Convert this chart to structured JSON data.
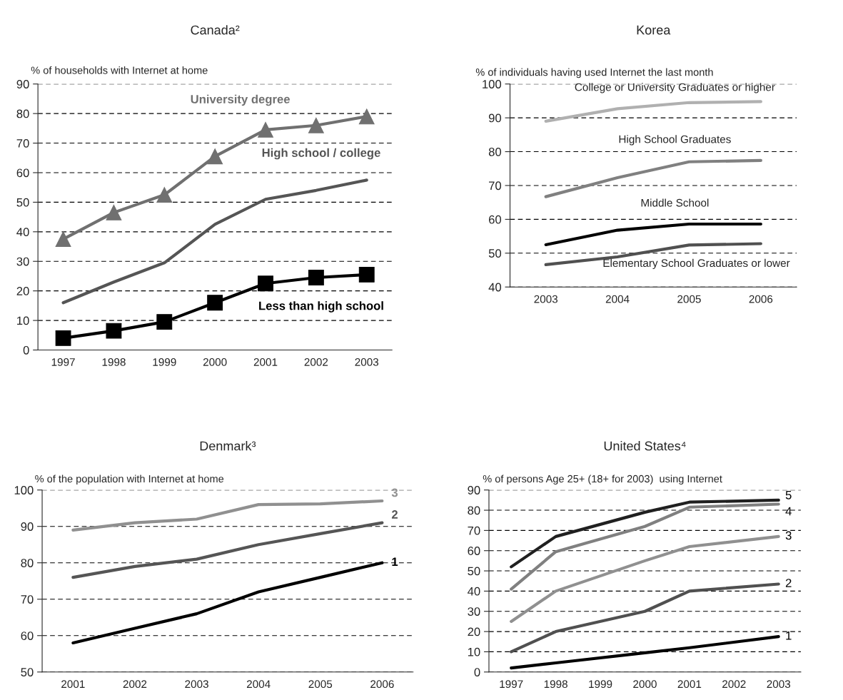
{
  "chart_data": [
    {
      "type": "line",
      "title": "Canada²",
      "ylabel": "% of households with Internet at home",
      "categories": [
        "1997",
        "1998",
        "1999",
        "2000",
        "2001",
        "2002",
        "2003"
      ],
      "ylim": [
        0,
        90
      ],
      "yticks": [
        0,
        10,
        20,
        30,
        40,
        50,
        60,
        70,
        80,
        90
      ],
      "grid": "y",
      "series": [
        {
          "name": "University degree",
          "color": "#707070",
          "marker": "triangle",
          "values": [
            37.5,
            46.5,
            52.5,
            65.5,
            74.5,
            76,
            79
          ]
        },
        {
          "name": "High school / college",
          "color": "#555555",
          "values": [
            16,
            23,
            29.5,
            42.5,
            51,
            54,
            57.5
          ]
        },
        {
          "name": "Less than high school",
          "color": "#000000",
          "marker": "square",
          "values": [
            4,
            6.5,
            9.5,
            16,
            22.5,
            24.5,
            25.5
          ]
        }
      ]
    },
    {
      "type": "line",
      "title": "Korea",
      "ylabel": "% of individuals having used Internet the last month",
      "categories": [
        "2003",
        "2004",
        "2005",
        "2006"
      ],
      "ylim": [
        40,
        100
      ],
      "yticks": [
        40,
        50,
        60,
        70,
        80,
        90,
        100
      ],
      "grid": "y",
      "series": [
        {
          "name": "College or University Graduates or higher",
          "color": "#b0b0b0",
          "values": [
            89,
            92.7,
            94.5,
            94.8
          ]
        },
        {
          "name": "High School Graduates",
          "color": "#808080",
          "values": [
            66.7,
            72.3,
            77,
            77.4
          ]
        },
        {
          "name": "Middle School",
          "color": "#000000",
          "values": [
            52.5,
            56.8,
            58.6,
            58.6
          ]
        },
        {
          "name": "Elementary School Graduates or lower",
          "color": "#505050",
          "values": [
            46.6,
            48.9,
            52.4,
            52.8
          ]
        }
      ]
    },
    {
      "type": "line",
      "title": "Denmark³",
      "ylabel": "% of the population with Internet at home",
      "categories": [
        "2001",
        "2002",
        "2003",
        "2004",
        "2005",
        "2006"
      ],
      "ylim": [
        50,
        100
      ],
      "yticks": [
        50,
        60,
        70,
        80,
        90,
        100
      ],
      "grid": "y",
      "series": [
        {
          "name": "3",
          "color": "#909090",
          "values": [
            89,
            91,
            92,
            96,
            96.2,
            97
          ]
        },
        {
          "name": "2",
          "color": "#555555",
          "values": [
            76,
            79,
            81,
            85,
            88,
            91
          ]
        },
        {
          "name": "1",
          "color": "#000000",
          "values": [
            58,
            62,
            66,
            72,
            76,
            80
          ]
        }
      ]
    },
    {
      "type": "line",
      "title": "United States⁴",
      "ylabel": "% of persons Age 25+ (18+ for 2003)  using Internet",
      "xlim": [
        1996.5,
        2003.5
      ],
      "xticks": [
        1997,
        1998,
        1999,
        2000,
        2001,
        2002,
        2003
      ],
      "ylim": [
        0,
        90
      ],
      "yticks": [
        0,
        10,
        20,
        30,
        40,
        50,
        60,
        70,
        80,
        90
      ],
      "grid": "y",
      "series": [
        {
          "name": "5",
          "color": "#202020",
          "x": [
            1997,
            1998,
            2000,
            2001,
            2003
          ],
          "values": [
            52,
            67,
            79,
            84,
            85
          ]
        },
        {
          "name": "4",
          "color": "#808080",
          "x": [
            1997,
            1998,
            2000,
            2001,
            2003
          ],
          "values": [
            41,
            59.5,
            72,
            81.5,
            83
          ]
        },
        {
          "name": "3",
          "color": "#909090",
          "x": [
            1997,
            1998,
            2000,
            2001,
            2003
          ],
          "values": [
            25,
            40,
            55,
            62,
            67
          ]
        },
        {
          "name": "2",
          "color": "#505050",
          "x": [
            1997,
            1998,
            2000,
            2001,
            2003
          ],
          "values": [
            10,
            20,
            30,
            40,
            43.5
          ]
        },
        {
          "name": "1",
          "color": "#000000",
          "x": [
            1997,
            1998,
            2000,
            2001,
            2003
          ],
          "values": [
            2,
            4.5,
            9.5,
            12,
            17.5
          ]
        }
      ]
    }
  ]
}
